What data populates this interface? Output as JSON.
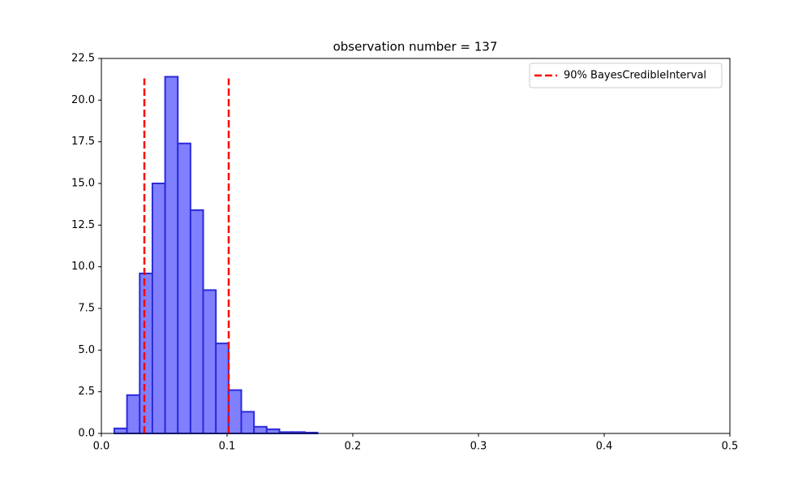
{
  "chart_data": {
    "type": "histogram",
    "title": "observation number = 137",
    "bins": [
      0.0103,
      0.0204,
      0.0305,
      0.0406,
      0.0507,
      0.0608,
      0.0709,
      0.081,
      0.0911,
      0.1012,
      0.1113,
      0.1214,
      0.1315,
      0.1416,
      0.1517,
      0.1618,
      0.1719
    ],
    "values": [
      0.3,
      2.3,
      9.6,
      15.0,
      21.4,
      17.4,
      13.4,
      8.6,
      5.4,
      2.6,
      1.3,
      0.4,
      0.25,
      0.08,
      0.08,
      0.05
    ],
    "color": "#8080ff",
    "edgecolor": "#2b2bd9",
    "interval": {
      "name": "90% BayesCredibleInterval",
      "color": "#ff0000",
      "x": [
        0.0342,
        0.1013
      ],
      "ymax": 21.3
    },
    "legend": "upper right",
    "xlim": [
      0,
      0.5
    ],
    "ylim": [
      0,
      22.5
    ],
    "xticks": [
      {
        "value": 0,
        "label": "0.0"
      },
      0.1,
      0.2,
      0.3,
      0.4,
      0.5
    ],
    "yticks": [
      {
        "value": 0,
        "label": "0.0"
      },
      2.5,
      {
        "value": 5,
        "label": "5.0"
      },
      7.5,
      {
        "value": 10,
        "label": "10.0"
      },
      12.5,
      {
        "value": 15,
        "label": "15.0"
      },
      17.5,
      {
        "value": 20,
        "label": "20.0"
      },
      22.5
    ]
  }
}
